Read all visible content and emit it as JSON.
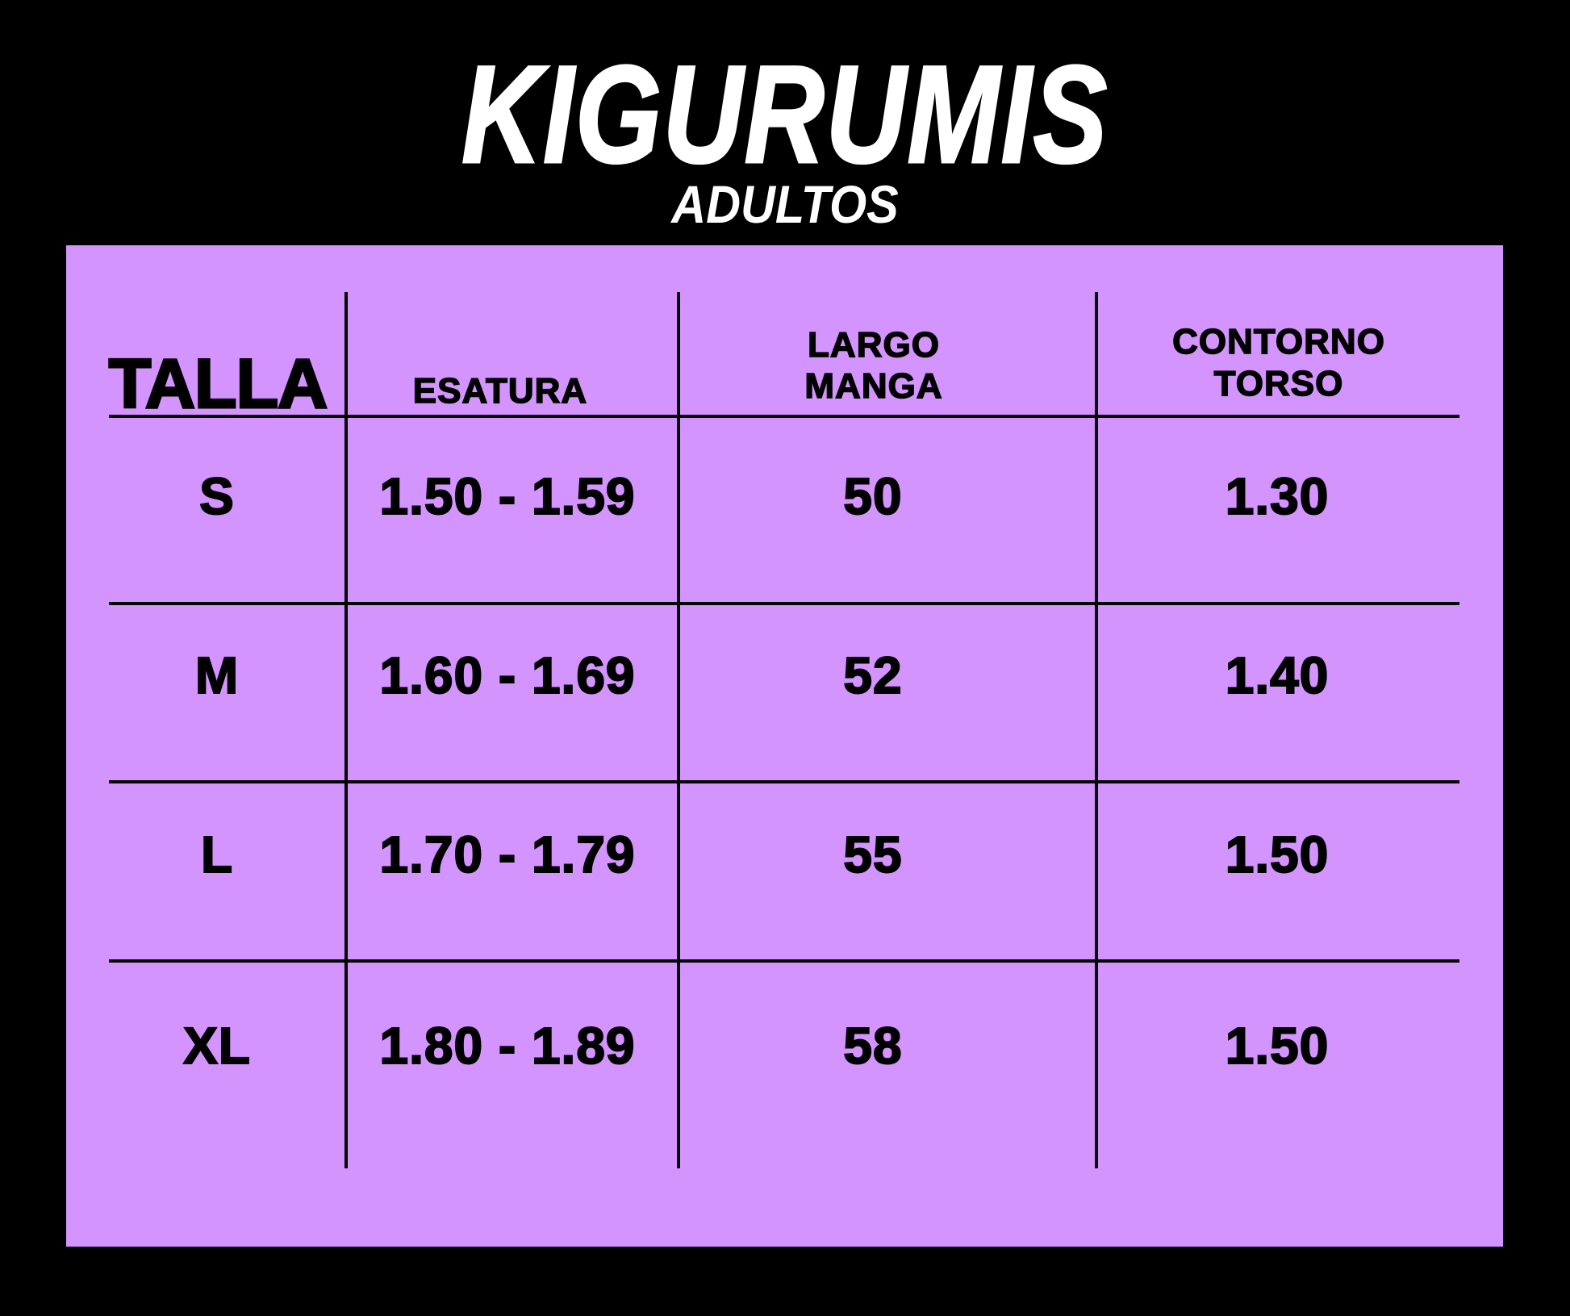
{
  "title": "KIGURUMIS",
  "subtitle": "ADULTOS",
  "colors": {
    "background": "#000000",
    "panel": "#d394fd",
    "text": "#000000",
    "title": "#ffffff"
  },
  "table": {
    "headers": [
      "TALLA",
      "ESATURA",
      "LARGO\nMANGA",
      "CONTORNO\nTORSO"
    ],
    "header_lines": {
      "largo": "LARGO",
      "manga": "MANGA",
      "contorno": "CONTORNO",
      "torso": "TORSO"
    },
    "rows": [
      {
        "talla": "S",
        "estatura": "1.50 - 1.59",
        "largo_manga": "50",
        "contorno_torso": "1.30"
      },
      {
        "talla": "M",
        "estatura": "1.60 - 1.69",
        "largo_manga": "52",
        "contorno_torso": "1.40"
      },
      {
        "talla": "L",
        "estatura": "1.70 - 1.79",
        "largo_manga": "55",
        "contorno_torso": "1.50"
      },
      {
        "talla": "XL",
        "estatura": "1.80 - 1.89",
        "largo_manga": "58",
        "contorno_torso": "1.50"
      }
    ]
  }
}
